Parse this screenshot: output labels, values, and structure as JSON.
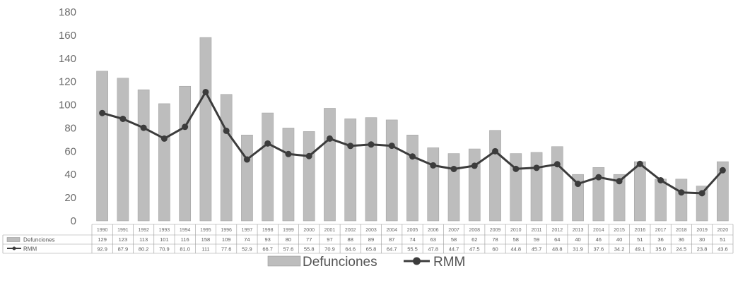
{
  "chart_data": {
    "type": "bar",
    "title": "",
    "xlabel": "",
    "ylabel": "",
    "ylim": [
      0,
      180
    ],
    "yticks": [
      0,
      20,
      40,
      60,
      80,
      100,
      120,
      140,
      160,
      180
    ],
    "grid": false,
    "legend_position": "bottom",
    "data_table": true,
    "categories": [
      "1990",
      "1991",
      "1992",
      "1993",
      "1994",
      "1995",
      "1996",
      "1997",
      "1998",
      "1999",
      "2000",
      "2001",
      "2002",
      "2003",
      "2004",
      "2005",
      "2006",
      "2007",
      "2008",
      "2009",
      "2010",
      "2011",
      "2012",
      "2013",
      "2014",
      "2015",
      "2016",
      "2017",
      "2018",
      "2019",
      "2020"
    ],
    "series": [
      {
        "name": "Defunciones",
        "type": "bar",
        "color": "#bdbdbd",
        "values": [
          129,
          123,
          113,
          101,
          116,
          158,
          109,
          74,
          93,
          80,
          77,
          97,
          88,
          89,
          87,
          74,
          63,
          58,
          62,
          78,
          58,
          59,
          64,
          40,
          46,
          40,
          51,
          36,
          36,
          30,
          51
        ],
        "labels": [
          "129",
          "123",
          "113",
          "101",
          "116",
          "158",
          "109",
          "74",
          "93",
          "80",
          "77",
          "97",
          "88",
          "89",
          "87",
          "74",
          "63",
          "58",
          "62",
          "78",
          "58",
          "59",
          "64",
          "40",
          "46",
          "40",
          "51",
          "36",
          "36",
          "30",
          "51"
        ]
      },
      {
        "name": "RMM",
        "type": "line",
        "color": "#3c3c3c",
        "values": [
          92.9,
          87.9,
          80.2,
          70.9,
          81.0,
          111,
          77.6,
          52.9,
          66.7,
          57.6,
          55.8,
          70.9,
          64.6,
          65.8,
          64.7,
          55.5,
          47.8,
          44.7,
          47.5,
          60,
          44.8,
          45.7,
          48.8,
          31.9,
          37.6,
          34.2,
          49.1,
          35,
          24.5,
          23.8,
          43.6
        ],
        "labels": [
          "92.9",
          "87.9",
          "80.2",
          "70.9",
          "81.0",
          "111",
          "77.6",
          "52.9",
          "66.7",
          "57.6",
          "55.8",
          "70.9",
          "64.6",
          "65.8",
          "64.7",
          "55.5",
          "47.8",
          "44.7",
          "47.5",
          "60",
          "44.8",
          "45.7",
          "48.8",
          "31.9",
          "37.6",
          "34.2",
          "49.1",
          "35.0",
          "24.5",
          "23.8",
          "43.6"
        ]
      }
    ]
  },
  "legend": {
    "defunciones_label": "Defunciones",
    "rmm_label": "RMM"
  },
  "table": {
    "row1_label": "Defunciones",
    "row2_label": "RMM"
  }
}
